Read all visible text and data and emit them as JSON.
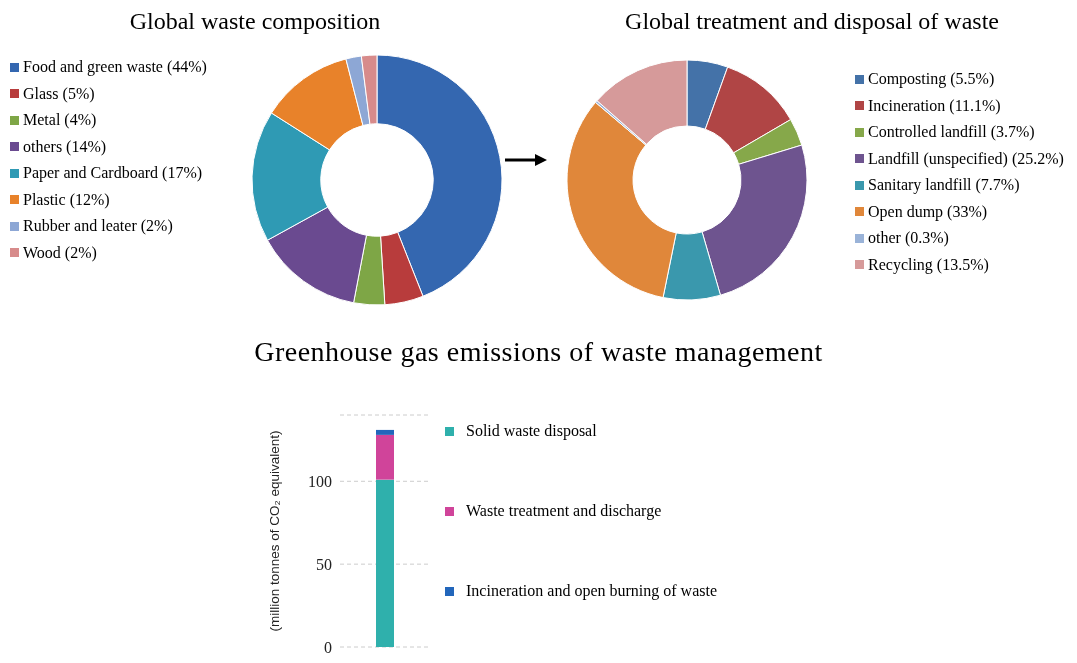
{
  "chart_data": [
    {
      "type": "donut",
      "title": "Global waste composition",
      "legend": "left",
      "categories": [
        "Food and green waste (44%)",
        "Glass (5%)",
        "Metal (4%)",
        "others (14%)",
        "Paper and Cardboard (17%)",
        "Plastic (12%)",
        "Rubber and leater (2%)",
        "Wood (2%)"
      ],
      "values": [
        44,
        5,
        4,
        14,
        17,
        12,
        2,
        2
      ],
      "colors": [
        "#3467b0",
        "#b83c3c",
        "#7ea646",
        "#6a4a90",
        "#2f9ab4",
        "#e8822a",
        "#8da7d5",
        "#d78b8b"
      ]
    },
    {
      "type": "donut",
      "title": "Global treatment and disposal of waste",
      "legend": "right",
      "categories": [
        "Composting (5.5%)",
        "Incineration (11.1%)",
        "Controlled landfill (3.7%)",
        "Landfill (unspecified) (25.2%)",
        "Sanitary landfill (7.7%)",
        "Open dump (33%)",
        "other (0.3%)",
        "Recycling (13.5%)"
      ],
      "values": [
        5.5,
        11.1,
        3.7,
        25.2,
        7.7,
        33,
        0.3,
        13.5
      ],
      "colors": [
        "#4472a8",
        "#b04545",
        "#86a84a",
        "#6e548f",
        "#3a98ad",
        "#e0873a",
        "#9ab3d8",
        "#d69a9a"
      ]
    },
    {
      "type": "bar",
      "stacked": true,
      "title": "Greenhouse gas emissions of waste management",
      "ylabel": "(million tonnes of CO₂ equivalent)",
      "legend": "right",
      "grid": "y",
      "categories": [
        null
      ],
      "ylim": [
        0,
        140
      ],
      "yticks": [
        0,
        50,
        100
      ],
      "series": [
        {
          "name": "Solid waste disposal",
          "color": "#2fb0ac",
          "values": [
            101
          ]
        },
        {
          "name": "Waste treatment and discharge",
          "color": "#d0449a",
          "values": [
            27
          ]
        },
        {
          "name": "Incineration and open burning of waste",
          "color": "#2266bb",
          "values": [
            3
          ]
        }
      ]
    }
  ]
}
